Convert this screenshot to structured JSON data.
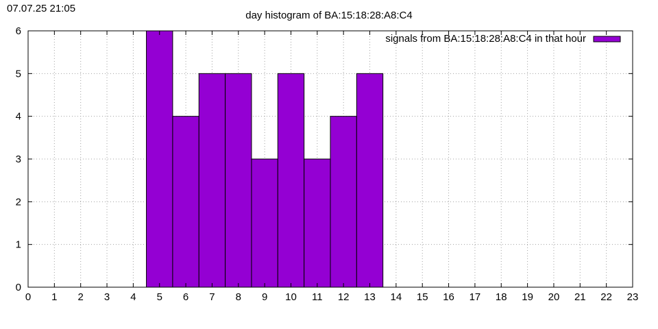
{
  "timestamp": "07.07.25 21:05",
  "chart_data": {
    "type": "bar",
    "title": "day histogram of BA:15:18:28:A8:C4",
    "xlabel": "",
    "ylabel": "",
    "xlim": [
      0,
      23
    ],
    "ylim": [
      0,
      6
    ],
    "x_ticks": [
      "0",
      "1",
      "2",
      "3",
      "4",
      "5",
      "6",
      "7",
      "8",
      "9",
      "10",
      "11",
      "12",
      "13",
      "14",
      "15",
      "16",
      "17",
      "18",
      "19",
      "20",
      "21",
      "22",
      "23"
    ],
    "y_ticks": [
      "0",
      "1",
      "2",
      "3",
      "4",
      "5",
      "6"
    ],
    "grid": true,
    "legend_position": "top-right",
    "bar_color": "#9400d3",
    "series": [
      {
        "name": "signals from BA:15:18:28:A8:C4 in that hour",
        "bars": [
          {
            "hour": 5,
            "value": 6
          },
          {
            "hour": 6,
            "value": 4
          },
          {
            "hour": 7,
            "value": 5
          },
          {
            "hour": 8,
            "value": 5
          },
          {
            "hour": 9,
            "value": 3
          },
          {
            "hour": 10,
            "value": 5
          },
          {
            "hour": 11,
            "value": 3
          },
          {
            "hour": 12,
            "value": 4
          },
          {
            "hour": 13,
            "value": 5
          }
        ]
      }
    ]
  }
}
